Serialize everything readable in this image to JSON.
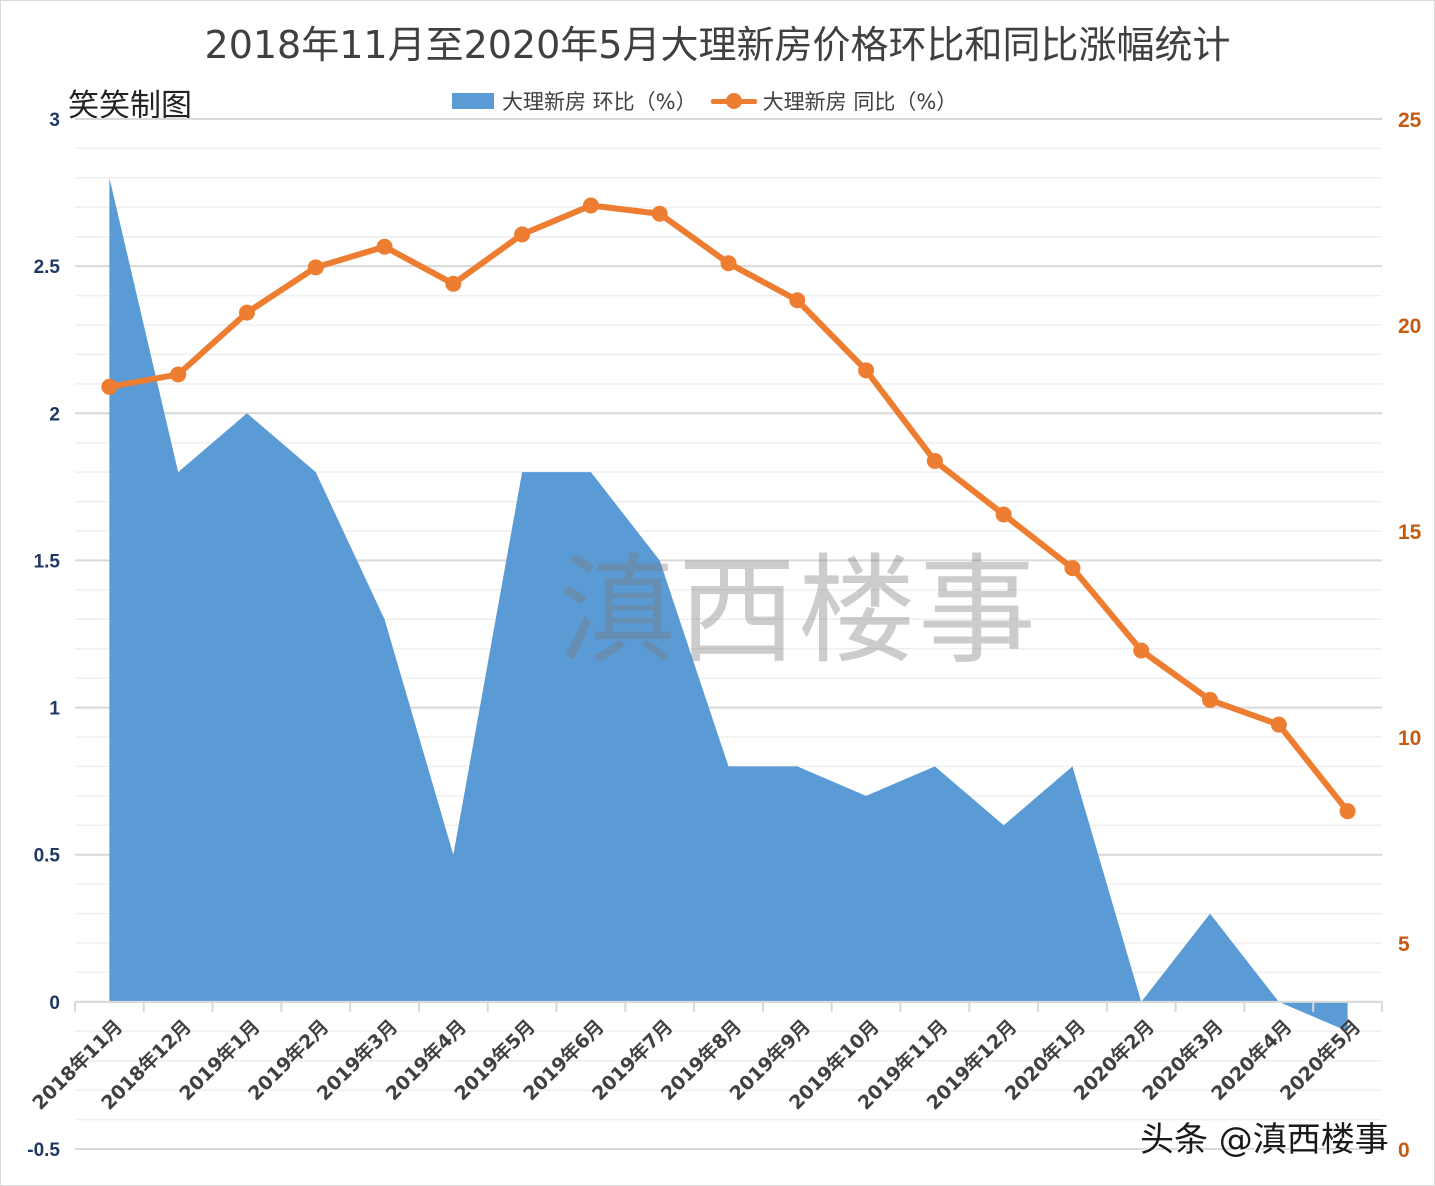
{
  "header": {
    "title": "2018年11月至2020年5月大理新房价格环比和同比涨幅统计",
    "maker_label": "笑笑制图"
  },
  "legend": {
    "items": [
      {
        "label": "大理新房 环比（%）",
        "type": "area",
        "color": "#5B9BD5",
        "icon": "area-swatch-icon"
      },
      {
        "label": "大理新房 同比（%）",
        "type": "line",
        "color": "#ED7D31",
        "icon": "line-marker-icon"
      }
    ]
  },
  "watermark": "滇西楼事",
  "credit": "头条 @滇西楼事",
  "colors": {
    "area": "#5B9BD5",
    "line": "#ED7D31",
    "left_axis_text": "#1F3864",
    "right_axis_text": "#C55A11",
    "grid_major": "#D9D9D9",
    "grid_minor": "#EFEFEF",
    "x_label_text": "#404040"
  },
  "chart_data": {
    "type": "area+line",
    "title": "2018年11月至2020年5月大理新房价格环比和同比涨幅统计",
    "categories": [
      "2018年11月",
      "2018年12月",
      "2019年1月",
      "2019年2月",
      "2019年3月",
      "2019年4月",
      "2019年5月",
      "2019年6月",
      "2019年7月",
      "2019年8月",
      "2019年9月",
      "2019年10月",
      "2019年11月",
      "2019年12月",
      "2020年1月",
      "2020年2月",
      "2020年3月",
      "2020年4月",
      "2020年5月"
    ],
    "series": [
      {
        "name": "大理新房 环比（%）",
        "type": "area",
        "axis": "left",
        "color": "#5B9BD5",
        "values": [
          2.8,
          1.8,
          2.0,
          1.8,
          1.3,
          0.5,
          1.8,
          1.8,
          1.5,
          0.8,
          0.8,
          0.7,
          0.8,
          0.6,
          0.8,
          0.0,
          0.3,
          0.0,
          -0.1
        ]
      },
      {
        "name": "大理新房 同比（%）",
        "type": "line",
        "axis": "right",
        "color": "#ED7D31",
        "values": [
          18.5,
          18.8,
          20.3,
          21.4,
          21.9,
          21.0,
          22.2,
          22.9,
          22.7,
          21.5,
          20.6,
          18.9,
          16.7,
          15.4,
          14.1,
          12.1,
          10.9,
          10.3,
          8.2
        ]
      }
    ],
    "left_axis": {
      "min": -0.5,
      "max": 3,
      "major_step": 0.5,
      "minor_step": 0.1,
      "ticks": [
        "-0.5",
        "0",
        "0.5",
        "1",
        "1.5",
        "2",
        "2.5",
        "3"
      ]
    },
    "right_axis": {
      "min": 0,
      "max": 25,
      "major_step": 5,
      "ticks": [
        "0",
        "5",
        "10",
        "15",
        "20",
        "25"
      ]
    },
    "xlabel": "",
    "ylabel": "",
    "grid": true,
    "legend_position": "top"
  }
}
